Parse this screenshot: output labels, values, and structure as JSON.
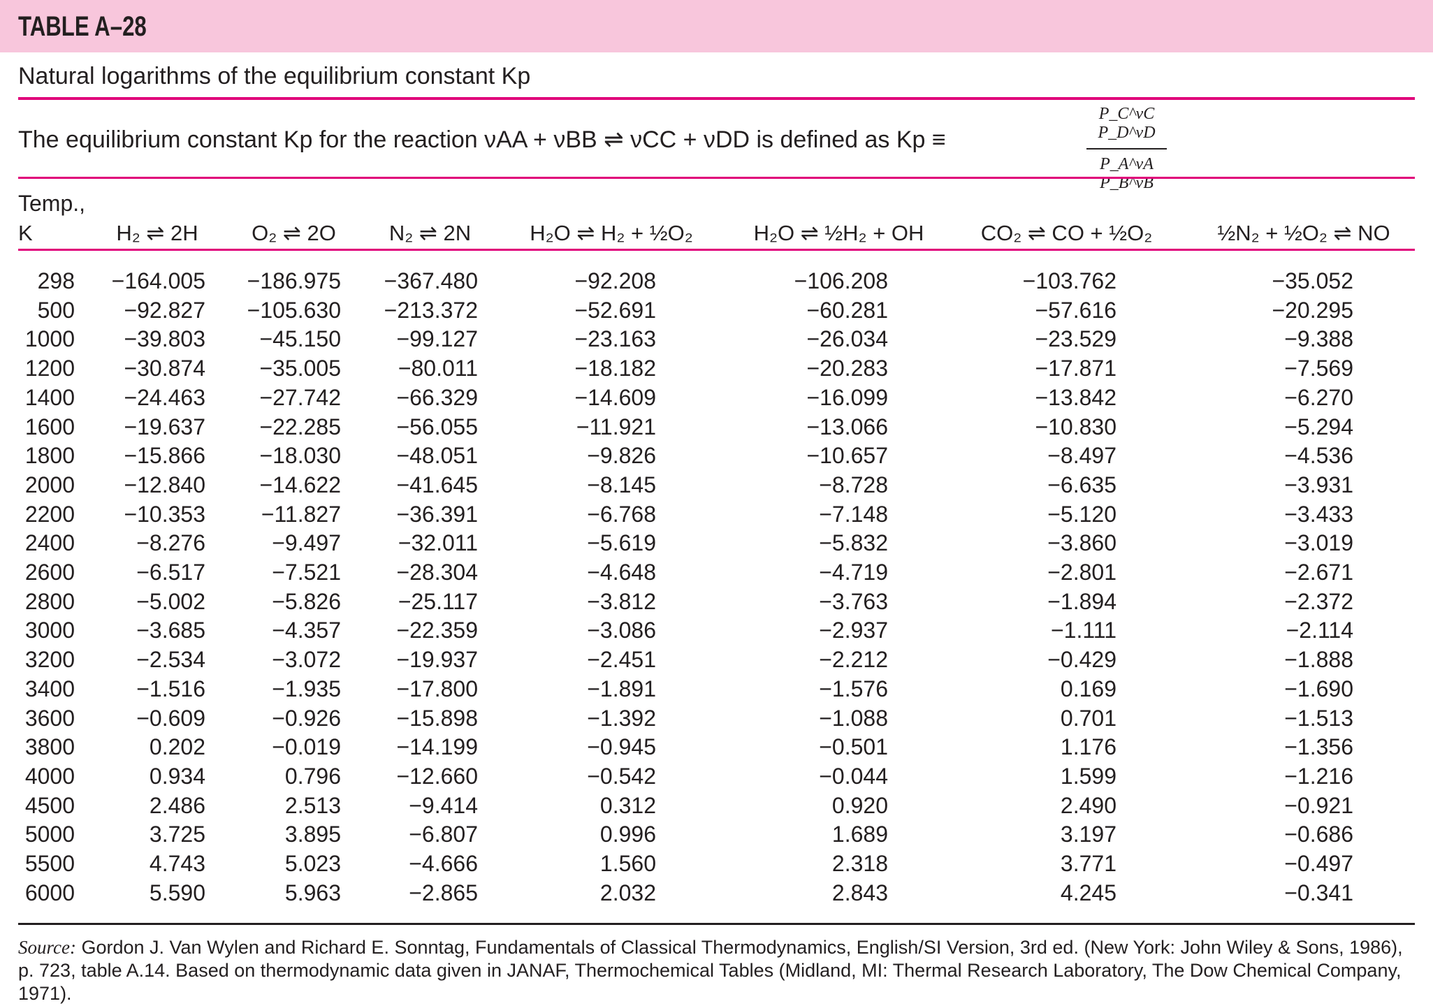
{
  "title": "TABLE A–28",
  "subtitle": "Natural logarithms of the equilibrium constant Kp",
  "definition": {
    "text": "The equilibrium constant Kp for the reaction νAA + νBB ⇌ νCC + νDD is defined as Kp ≡",
    "numerator": "P_C^νC P_D^νD",
    "denominator": "P_A^νA P_B^νB"
  },
  "colors": {
    "header_bg": "#f8c6dc",
    "rule": "#e0007a",
    "text": "#231f20"
  },
  "temp_label_1": "Temp.,",
  "temp_label_2": "K",
  "columns": [
    "H₂ ⇌ 2H",
    "O₂ ⇌ 2O",
    "N₂ ⇌ 2N",
    "H₂O ⇌ H₂ + ½O₂",
    "H₂O ⇌ ½H₂ + OH",
    "CO₂ ⇌ CO + ½O₂",
    "½N₂ + ½O₂ ⇌ NO"
  ],
  "rows": [
    [
      "298",
      "−164.005",
      "−186.975",
      "−367.480",
      "−92.208",
      "−106.208",
      "−103.762",
      "−35.052"
    ],
    [
      "500",
      "−92.827",
      "−105.630",
      "−213.372",
      "−52.691",
      "−60.281",
      "−57.616",
      "−20.295"
    ],
    [
      "1000",
      "−39.803",
      "−45.150",
      "−99.127",
      "−23.163",
      "−26.034",
      "−23.529",
      "−9.388"
    ],
    [
      "1200",
      "−30.874",
      "−35.005",
      "−80.011",
      "−18.182",
      "−20.283",
      "−17.871",
      "−7.569"
    ],
    [
      "1400",
      "−24.463",
      "−27.742",
      "−66.329",
      "−14.609",
      "−16.099",
      "−13.842",
      "−6.270"
    ],
    [
      "1600",
      "−19.637",
      "−22.285",
      "−56.055",
      "−11.921",
      "−13.066",
      "−10.830",
      "−5.294"
    ],
    [
      "1800",
      "−15.866",
      "−18.030",
      "−48.051",
      "−9.826",
      "−10.657",
      "−8.497",
      "−4.536"
    ],
    [
      "2000",
      "−12.840",
      "−14.622",
      "−41.645",
      "−8.145",
      "−8.728",
      "−6.635",
      "−3.931"
    ],
    [
      "2200",
      "−10.353",
      "−11.827",
      "−36.391",
      "−6.768",
      "−7.148",
      "−5.120",
      "−3.433"
    ],
    [
      "2400",
      "−8.276",
      "−9.497",
      "−32.011",
      "−5.619",
      "−5.832",
      "−3.860",
      "−3.019"
    ],
    [
      "2600",
      "−6.517",
      "−7.521",
      "−28.304",
      "−4.648",
      "−4.719",
      "−2.801",
      "−2.671"
    ],
    [
      "2800",
      "−5.002",
      "−5.826",
      "−25.117",
      "−3.812",
      "−3.763",
      "−1.894",
      "−2.372"
    ],
    [
      "3000",
      "−3.685",
      "−4.357",
      "−22.359",
      "−3.086",
      "−2.937",
      "−1.111",
      "−2.114"
    ],
    [
      "3200",
      "−2.534",
      "−3.072",
      "−19.937",
      "−2.451",
      "−2.212",
      "−0.429",
      "−1.888"
    ],
    [
      "3400",
      "−1.516",
      "−1.935",
      "−17.800",
      "−1.891",
      "−1.576",
      "0.169",
      "−1.690"
    ],
    [
      "3600",
      "−0.609",
      "−0.926",
      "−15.898",
      "−1.392",
      "−1.088",
      "0.701",
      "−1.513"
    ],
    [
      "3800",
      "0.202",
      "−0.019",
      "−14.199",
      "−0.945",
      "−0.501",
      "1.176",
      "−1.356"
    ],
    [
      "4000",
      "0.934",
      "0.796",
      "−12.660",
      "−0.542",
      "−0.044",
      "1.599",
      "−1.216"
    ],
    [
      "4500",
      "2.486",
      "2.513",
      "−9.414",
      "0.312",
      "0.920",
      "2.490",
      "−0.921"
    ],
    [
      "5000",
      "3.725",
      "3.895",
      "−6.807",
      "0.996",
      "1.689",
      "3.197",
      "−0.686"
    ],
    [
      "5500",
      "4.743",
      "5.023",
      "−4.666",
      "1.560",
      "2.318",
      "3.771",
      "−0.497"
    ],
    [
      "6000",
      "5.590",
      "5.963",
      "−2.865",
      "2.032",
      "2.843",
      "4.245",
      "−0.341"
    ]
  ],
  "source": {
    "label": "Source:",
    "text": " Gordon J. Van Wylen and Richard E. Sonntag, Fundamentals of Classical Thermodynamics, English/SI Version, 3rd ed. (New York: John Wiley & Sons, 1986), p. 723, table A.14. Based on thermodynamic data given in JANAF, Thermochemical Tables (Midland, MI: Thermal Research Laboratory, The Dow Chemical Company, 1971)."
  }
}
